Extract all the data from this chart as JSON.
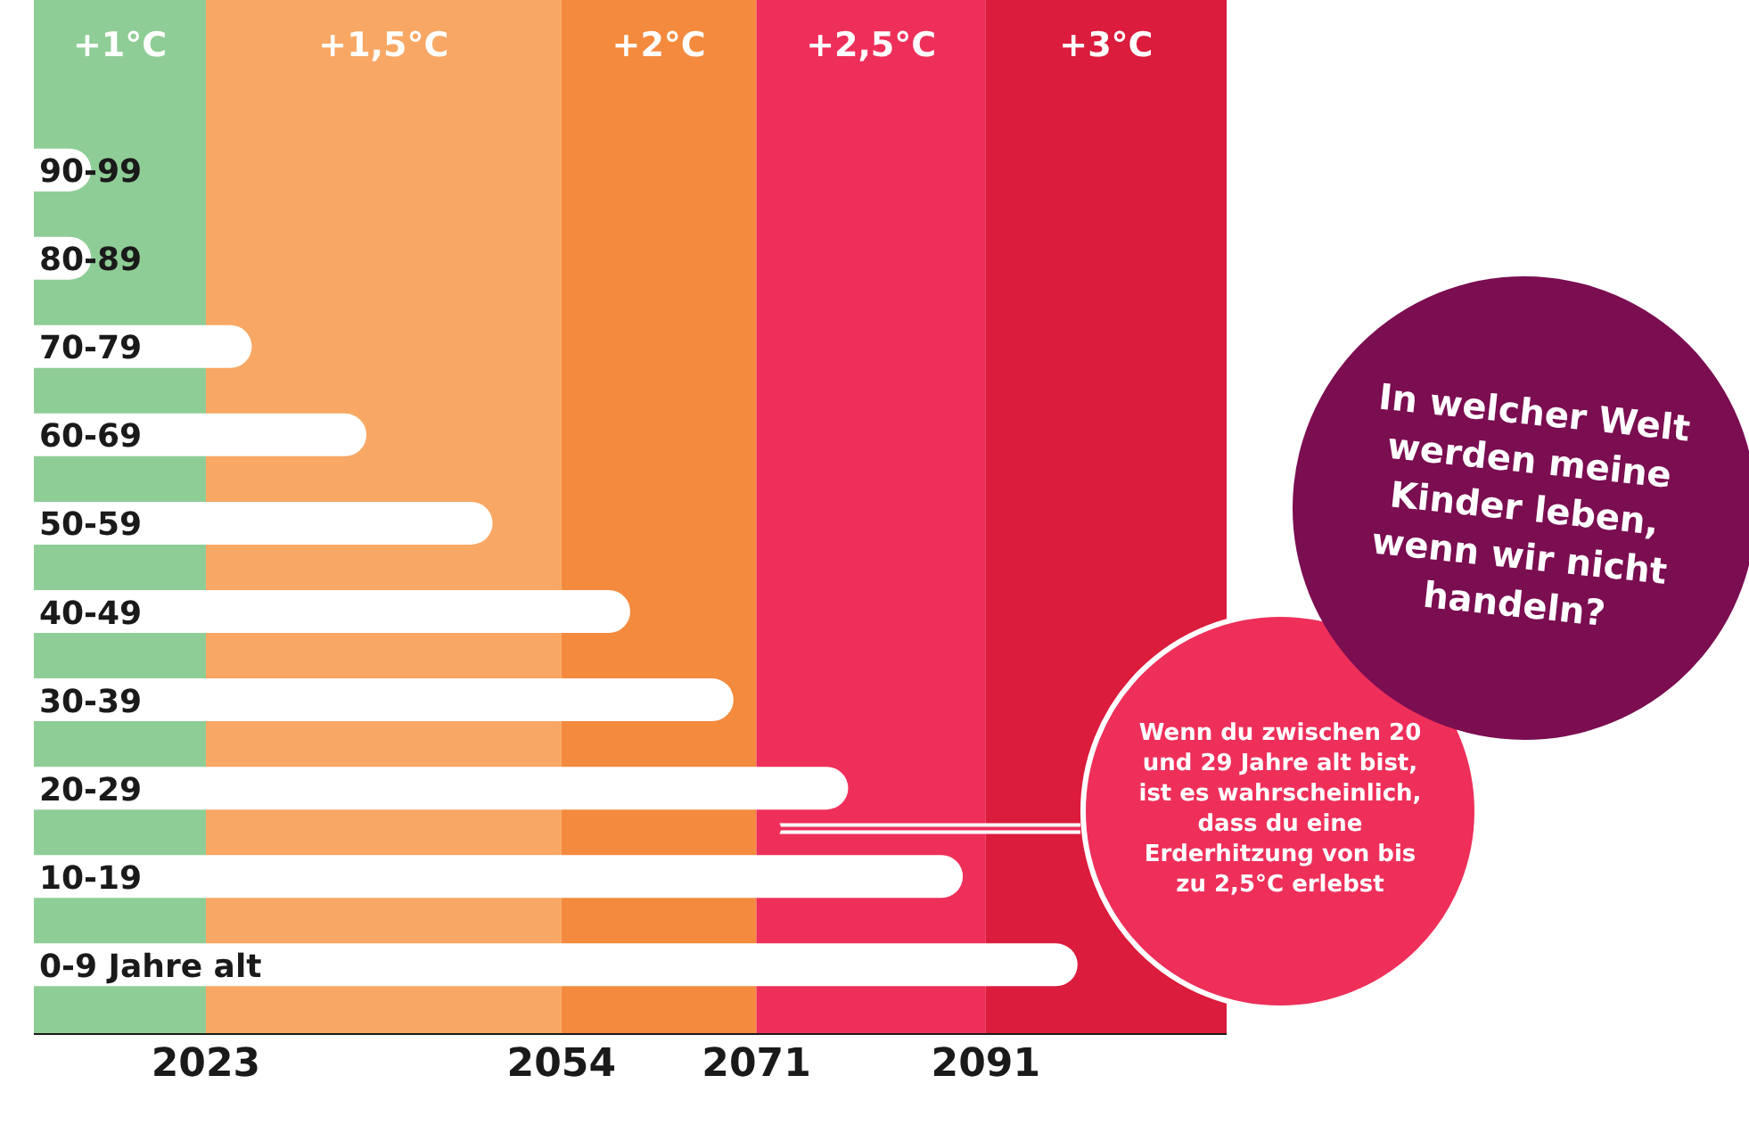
{
  "chart_data": {
    "type": "bar",
    "orientation": "horizontal",
    "categories": [
      "90-99",
      "80-89",
      "70-79",
      "60-69",
      "50-59",
      "40-49",
      "30-39",
      "20-29",
      "10-19",
      "0-9 Jahre alt"
    ],
    "values": [
      2013,
      2013,
      2027,
      2037,
      2048,
      2060,
      2069,
      2079,
      2089,
      2099
    ],
    "color": "#ffffff",
    "xlim": [
      2008,
      2112
    ],
    "xticks": [
      2023,
      2054,
      2071,
      2091
    ],
    "bands": [
      {
        "axis": "x",
        "from": 2008,
        "to": 2023,
        "label": "+1°C",
        "color": "#8fcd96"
      },
      {
        "axis": "x",
        "from": 2023,
        "to": 2054,
        "label": "+1,5°C",
        "color": "#f8a764"
      },
      {
        "axis": "x",
        "from": 2054,
        "to": 2071,
        "label": "+2°C",
        "color": "#f38a3d"
      },
      {
        "axis": "x",
        "from": 2071,
        "to": 2091,
        "label": "+2,5°C",
        "color": "#ee2f5a"
      },
      {
        "axis": "x",
        "from": 2091,
        "to": 2112,
        "label": "+3°C",
        "color": "#db1c3c"
      }
    ],
    "annotations": [
      "In welcher Welt werden meine Kinder leben, wenn wir nicht handeln?",
      "Wenn du zwischen 20 und 29 Jahre alt bist, ist es wahrscheinlich, dass du eine Erderhitzung von bis zu 2,5°C erlebst"
    ],
    "grid": false,
    "legend": false
  }
}
